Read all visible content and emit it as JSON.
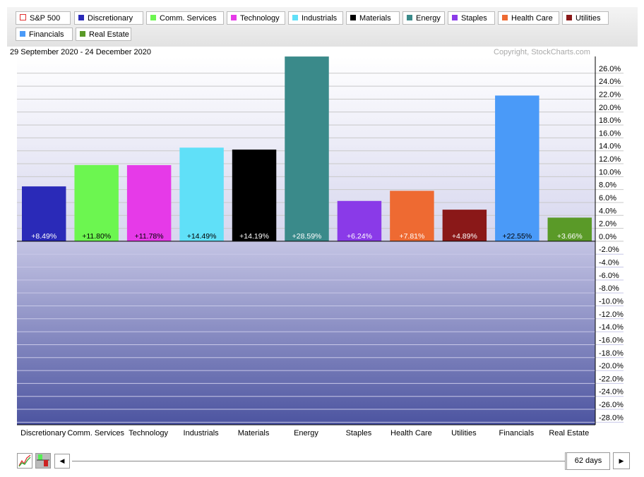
{
  "legend": [
    {
      "label": "S&P 500",
      "color": "#ffffff",
      "border": "#e03030"
    },
    {
      "label": "Discretionary",
      "color": "#2a2ab8"
    },
    {
      "label": "Comm. Services",
      "color": "#6cf650"
    },
    {
      "label": "Technology",
      "color": "#e63ae8"
    },
    {
      "label": "Industrials",
      "color": "#60e0f8"
    },
    {
      "label": "Materials",
      "color": "#000000"
    },
    {
      "label": "Energy",
      "color": "#3a8a8a"
    },
    {
      "label": "Staples",
      "color": "#8a3ae8"
    },
    {
      "label": "Health Care",
      "color": "#ee6a32"
    },
    {
      "label": "Utilities",
      "color": "#8a1818"
    },
    {
      "label": "Financials",
      "color": "#4a9af8"
    },
    {
      "label": "Real Estate",
      "color": "#5a9a28"
    }
  ],
  "date_range": "29 September 2020 - 24 December 2020",
  "copyright": "Copyright, StockCharts.com",
  "period": "62 days",
  "chart_data": {
    "type": "bar",
    "categories": [
      "Discretionary",
      "Comm. Services",
      "Technology",
      "Industrials",
      "Materials",
      "Energy",
      "Staples",
      "Health Care",
      "Utilities",
      "Financials",
      "Real Estate"
    ],
    "values": [
      8.49,
      11.8,
      11.78,
      14.49,
      14.19,
      28.59,
      6.24,
      7.81,
      4.89,
      22.55,
      3.66
    ],
    "data_labels": [
      "+8.49%",
      "+11.80%",
      "+11.78%",
      "+14.49%",
      "+14.19%",
      "+28.59%",
      "+6.24%",
      "+7.81%",
      "+4.89%",
      "+22.55%",
      "+3.66%"
    ],
    "colors": [
      "#2a2ab8",
      "#6cf650",
      "#e63ae8",
      "#60e0f8",
      "#000000",
      "#3a8a8a",
      "#8a3ae8",
      "#ee6a32",
      "#8a1818",
      "#4a9af8",
      "#5a9a28"
    ],
    "label_colors": [
      "#ffffff",
      "#000000",
      "#000000",
      "#000000",
      "#ffffff",
      "#ffffff",
      "#ffffff",
      "#ffffff",
      "#ffffff",
      "#000000",
      "#ffffff"
    ],
    "ylim": [
      -28.4,
      28.6
    ],
    "yticks": [
      26,
      24,
      22,
      20,
      18,
      16,
      14,
      12,
      10,
      8,
      6,
      4,
      2,
      0,
      -2,
      -4,
      -6,
      -8,
      -10,
      -12,
      -14,
      -16,
      -18,
      -20,
      -22,
      -24,
      -26,
      -28
    ],
    "ytick_format": "percent-1dp",
    "grid": true,
    "legend_position": "top"
  }
}
